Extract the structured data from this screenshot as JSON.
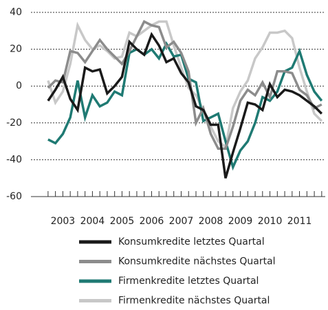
{
  "chart_data": {
    "type": "line",
    "x": [
      2003,
      2003.25,
      2003.5,
      2003.75,
      2004,
      2004.25,
      2004.5,
      2004.75,
      2005,
      2005.25,
      2005.5,
      2005.75,
      2006,
      2006.25,
      2006.5,
      2006.75,
      2007,
      2007.25,
      2007.5,
      2007.75,
      2008,
      2008.25,
      2008.5,
      2008.75,
      2009,
      2009.25,
      2009.5,
      2009.75,
      2010,
      2010.25,
      2010.5,
      2010.75,
      2011,
      2011.25,
      2011.5,
      2011.75,
      2012,
      2012.25
    ],
    "xlim": [
      2002.84,
      2012.37
    ],
    "xticks": [
      {
        "value": 2003.5,
        "label": "2003"
      },
      {
        "value": 2004.5,
        "label": "2004"
      },
      {
        "value": 2005.5,
        "label": "2005"
      },
      {
        "value": 2006.5,
        "label": "2006"
      },
      {
        "value": 2007.5,
        "label": "2007"
      },
      {
        "value": 2008.5,
        "label": "2008"
      },
      {
        "value": 2009.5,
        "label": "2009"
      },
      {
        "value": 2010.5,
        "label": "2010"
      },
      {
        "value": 2011.5,
        "label": "2011"
      }
    ],
    "ylim": [
      -60,
      40
    ],
    "yticks": [
      40,
      20,
      0,
      -20,
      -40,
      -60
    ],
    "grid": true,
    "series": [
      {
        "name": "Konsumkredite letztes Quartal",
        "color": "#1a1a1a",
        "values": [
          -8,
          -2,
          5,
          -7,
          -13,
          10,
          8,
          9,
          -4,
          0,
          5,
          24,
          20,
          17,
          28,
          22,
          13,
          15,
          7,
          2,
          -11,
          -13,
          -21,
          -21,
          -50,
          -36,
          -23,
          -9,
          -10,
          -13,
          1,
          -6,
          -2,
          -3,
          -5,
          -8,
          -11,
          -15
        ]
      },
      {
        "name": "Konsumkredite nächstes Quartal",
        "color": "#8c8c8c",
        "values": [
          -1,
          3,
          2,
          19,
          18,
          13,
          19,
          25,
          20,
          16,
          12,
          19,
          27,
          35,
          33,
          32,
          21,
          24,
          18,
          8,
          -20,
          -12,
          -26,
          -34,
          -34,
          -22,
          -8,
          -2,
          -5,
          2,
          -6,
          8,
          8,
          7,
          -2,
          -5,
          -12,
          -10
        ]
      },
      {
        "name": "Firmenkredite letztes Quartal",
        "color": "#1f7a73",
        "values": [
          -29,
          -31,
          -26,
          -17,
          3,
          -17,
          -5,
          -11,
          -9,
          -3,
          -5,
          18,
          20,
          17,
          20,
          15,
          23,
          16,
          17,
          4,
          2,
          -19,
          -17,
          -15,
          -30,
          -44,
          -35,
          -30,
          -20,
          -6,
          -8,
          -3,
          8,
          10,
          19,
          6,
          -3,
          -8
        ]
      },
      {
        "name": "Firmenkredite nächstes Quartal",
        "color": "#c8c8c8",
        "values": [
          3,
          -9,
          -3,
          12,
          33,
          25,
          20,
          22,
          19,
          15,
          16,
          29,
          27,
          30,
          33,
          35,
          35,
          22,
          10,
          -1,
          -5,
          -13,
          -22,
          -30,
          -33,
          -12,
          -3,
          3,
          15,
          21,
          29,
          29,
          30,
          26,
          10,
          -3,
          -15,
          -19
        ]
      }
    ]
  }
}
